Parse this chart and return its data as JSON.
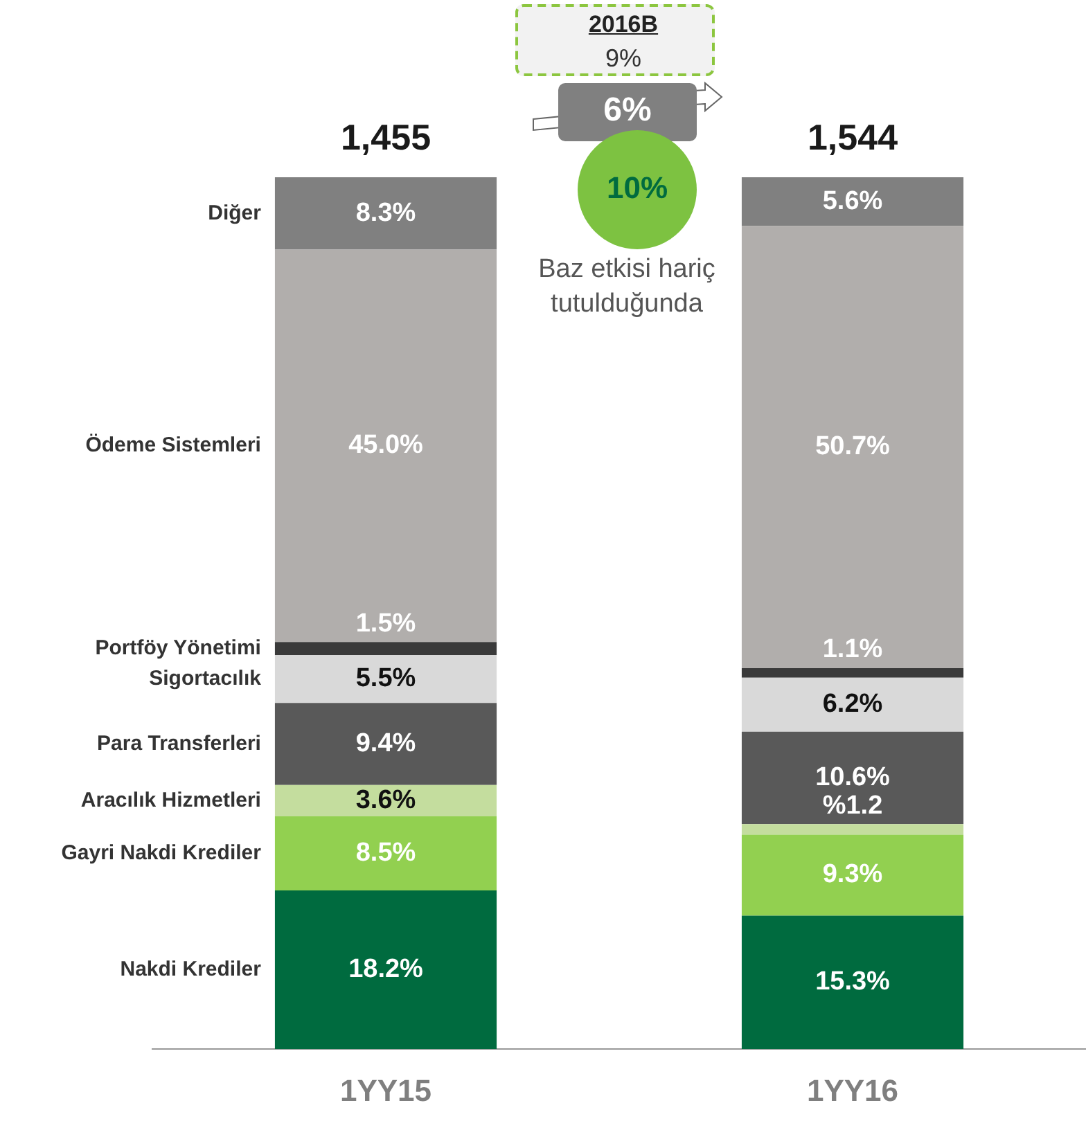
{
  "chart_data": {
    "type": "bar",
    "stacked": true,
    "categories": [
      "1YY15",
      "1YY16"
    ],
    "legend": "left",
    "series": [
      {
        "name": "Nakdi Krediler",
        "color": "#006b3f",
        "values": [
          18.2,
          15.3
        ],
        "value_labels": [
          "18.2%",
          "15.3%"
        ]
      },
      {
        "name": "Gayri Nakdi Krediler",
        "color": "#92d050",
        "values": [
          8.5,
          9.3
        ],
        "value_labels": [
          "8.5%",
          "9.3%"
        ]
      },
      {
        "name": "Aracılık Hizmetleri",
        "color": "#c4dd9e",
        "values": [
          3.6,
          1.2
        ],
        "value_labels": [
          "3.6%",
          "%1.2"
        ]
      },
      {
        "name": "Para Transferleri",
        "color": "#595959",
        "values": [
          9.4,
          10.6
        ],
        "value_labels": [
          "9.4%",
          "10.6%"
        ]
      },
      {
        "name": "Sigortacılık",
        "color": "#d9d9d9",
        "values": [
          5.5,
          6.2
        ],
        "value_labels": [
          "5.5%",
          "6.2%"
        ]
      },
      {
        "name": "Portföy Yönetimi",
        "color": "#3a3a3a",
        "values": [
          1.5,
          1.1
        ],
        "value_labels": [
          "1.5%",
          "1.1%"
        ]
      },
      {
        "name": "Ödeme Sistemleri",
        "color": "#b1aeac",
        "values": [
          45.0,
          50.7
        ],
        "value_labels": [
          "45.0%",
          "50.7%"
        ]
      },
      {
        "name": "Diğer",
        "color": "#808080",
        "values": [
          8.3,
          5.6
        ],
        "value_labels": [
          "8.3%",
          "5.6%"
        ]
      }
    ],
    "annotations": [
      "2016B",
      "9%",
      "6%",
      "10%",
      "Baz etkisi hariç tutulduğunda",
      {
        "text": "1,455",
        "x": "1YY15",
        "y": 100
      },
      {
        "text": "1,544",
        "x": "1YY16",
        "y": 100
      }
    ]
  }
}
